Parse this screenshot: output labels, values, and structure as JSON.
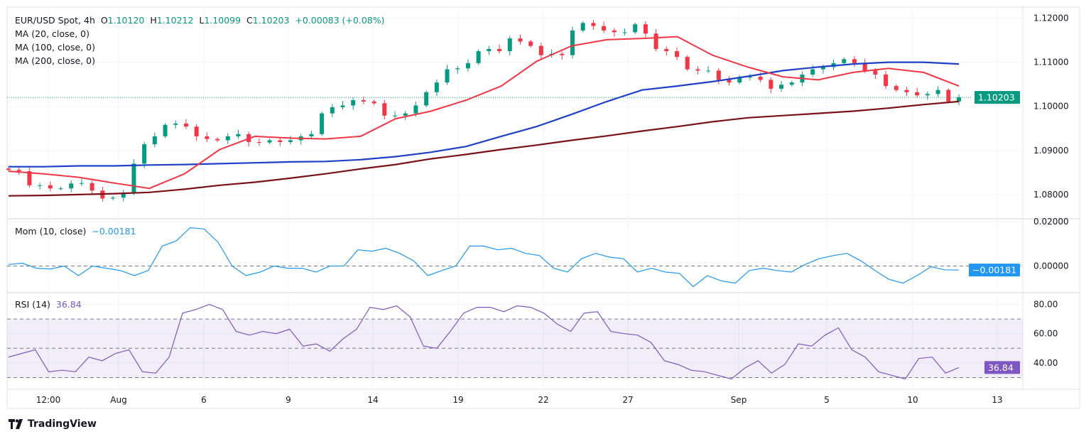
{
  "legend": {
    "symbol": "EUR/USD Spot, 4h",
    "open_label": "O",
    "open": "1.10120",
    "high_label": "H",
    "high": "1.10212",
    "low_label": "L",
    "low": "1.10099",
    "close_label": "C",
    "close": "1.10203",
    "change": "+0.00083 (+0.08%)",
    "ma20": "MA (20, close, 0)",
    "ma100": "MA (100, close, 0)",
    "ma200": "MA (200, close, 0)",
    "mom": "Mom (10, close)",
    "mom_value": "−0.00181",
    "rsi": "RSI (14)",
    "rsi_value": "36.84"
  },
  "branding": {
    "logo_text": "TradingView"
  },
  "colors": {
    "up": "#089981",
    "down": "#f23645",
    "ma20": "#f23645",
    "ma100": "#1e40c8",
    "ma200": "#7b1118",
    "mom": "#2196f3",
    "rsi": "#7e57c2"
  },
  "chart_data": [
    {
      "type": "line",
      "title": "EUR/USD Spot, 4h",
      "ylim": [
        1.0745,
        1.1225
      ],
      "yticks": [
        "1.12000",
        "1.11000",
        "1.10000",
        "1.09000",
        "1.08000"
      ],
      "ytick_values": [
        1.12,
        1.11,
        1.1,
        1.09,
        1.08
      ],
      "last_price_label": "1.10203",
      "last_price": 1.10203,
      "xticks": [
        "12:00",
        "Aug",
        "6",
        "9",
        "14",
        "19",
        "22",
        "27",
        "Sep",
        "5",
        "10",
        "13"
      ],
      "closes": [
        1.0856,
        1.0853,
        1.0821,
        1.0821,
        1.0814,
        1.0814,
        1.0825,
        1.0826,
        1.0809,
        1.0791,
        1.0793,
        1.0804,
        1.087,
        1.0914,
        1.0932,
        1.0958,
        1.0961,
        1.0954,
        1.0932,
        1.0926,
        1.0923,
        1.0932,
        1.0937,
        1.0919,
        1.0918,
        1.0923,
        1.0919,
        1.0923,
        1.0932,
        1.0937,
        1.0984,
        1.0998,
        1.1002,
        1.1014,
        1.1011,
        1.1007,
        1.0979,
        1.0979,
        1.0984,
        1.1002,
        1.1032,
        1.1054,
        1.1084,
        1.1086,
        1.1098,
        1.1125,
        1.113,
        1.1125,
        1.1154,
        1.1147,
        1.1137,
        1.1116,
        1.1119,
        1.1116,
        1.1172,
        1.1189,
        1.1182,
        1.1172,
        1.1168,
        1.1168,
        1.1186,
        1.1165,
        1.113,
        1.1125,
        1.1112,
        1.1084,
        1.1081,
        1.1081,
        1.106,
        1.1054,
        1.1067,
        1.1067,
        1.106,
        1.104,
        1.1049,
        1.1054,
        1.1072,
        1.1084,
        1.1089,
        1.1098,
        1.1107,
        1.1098,
        1.1081,
        1.1072,
        1.1046,
        1.1037,
        1.1032,
        1.1025,
        1.1028,
        1.1037,
        1.1011,
        1.10203
      ],
      "series": [
        {
          "name": "MA (20, close, 0)",
          "values": [
            1.0853,
            1.0847,
            1.0839,
            1.0826,
            1.0814,
            1.0847,
            1.0902,
            1.0932,
            1.0928,
            1.0926,
            1.0932,
            1.0972,
            1.0989,
            1.1014,
            1.1046,
            1.1102,
            1.1137,
            1.1151,
            1.1154,
            1.1158,
            1.1116,
            1.1089,
            1.1067,
            1.106,
            1.1077,
            1.1086,
            1.1077,
            1.1046
          ]
        },
        {
          "name": "MA (100, close, 0)",
          "values": [
            1.0863,
            1.0863,
            1.0865,
            1.0865,
            1.0867,
            1.0868,
            1.087,
            1.0872,
            1.0874,
            1.0875,
            1.0879,
            1.0886,
            1.0896,
            1.0909,
            1.0932,
            1.0954,
            1.0982,
            1.1011,
            1.1037,
            1.1046,
            1.1056,
            1.1068,
            1.1081,
            1.1089,
            1.1096,
            1.11,
            1.11,
            1.1096
          ]
        },
        {
          "name": "MA (200, close, 0)",
          "values": [
            1.0797,
            1.0798,
            1.08,
            1.0802,
            1.0805,
            1.0812,
            1.0821,
            1.0828,
            1.0837,
            1.0847,
            1.0858,
            1.0868,
            1.0881,
            1.0891,
            1.0902,
            1.0912,
            1.0923,
            1.0933,
            1.0944,
            1.0954,
            1.0965,
            1.0974,
            1.0979,
            1.0984,
            1.0989,
            1.0996,
            1.1004,
            1.1011
          ]
        }
      ]
    },
    {
      "type": "line",
      "title": "Mom (10, close)",
      "ylim": [
        -0.012,
        0.0213
      ],
      "yticks": [
        "0.02000",
        "0.00000"
      ],
      "ytick_values": [
        0.02,
        0.0
      ],
      "last_value_label": "−0.00181",
      "values": [
        0.0007,
        0.0013,
        -0.001,
        -0.0013,
        0,
        -0.0043,
        0,
        -0.001,
        -0.002,
        -0.0043,
        -0.002,
        0.009,
        0.0113,
        0.0173,
        0.0167,
        0.0107,
        0,
        -0.0043,
        -0.0027,
        0,
        -0.001,
        -0.001,
        -0.0027,
        0,
        0,
        0.0073,
        0.0067,
        0.008,
        0.0057,
        0.0023,
        -0.0043,
        -0.002,
        0,
        0.009,
        0.009,
        0.0073,
        0.008,
        0.0057,
        0.0047,
        -0.001,
        -0.0027,
        0.0033,
        0.0057,
        0.004,
        0.0033,
        -0.0027,
        -0.001,
        -0.0027,
        -0.0033,
        -0.0093,
        -0.0043,
        -0.0067,
        -0.0077,
        -0.002,
        -0.001,
        -0.002,
        -0.0027,
        0.0007,
        0.0033,
        0.0047,
        0.0057,
        0.0023,
        -0.002,
        -0.006,
        -0.0077,
        -0.0043,
        -0.0003,
        -0.0017,
        -0.00181
      ]
    },
    {
      "type": "line",
      "title": "RSI (14)",
      "ylim": [
        22,
        88
      ],
      "yticks": [
        "80.00",
        "60.00",
        "40.00"
      ],
      "ytick_values": [
        80,
        60,
        40
      ],
      "bands": [
        30,
        50,
        70
      ],
      "last_value_label": "36.84",
      "values": [
        44,
        46.5,
        49,
        34,
        35,
        34,
        44,
        41.5,
        46.5,
        49,
        34,
        33,
        44,
        74,
        76.5,
        80,
        76.5,
        61.5,
        59,
        61.5,
        60,
        63,
        51.5,
        53,
        48,
        56.5,
        63,
        78,
        76.5,
        79,
        71.5,
        51.5,
        50,
        61.5,
        74,
        78,
        78,
        75,
        79,
        78,
        74,
        66.5,
        61.5,
        74,
        75,
        61.5,
        60,
        59,
        54,
        41.5,
        39,
        35,
        34,
        31.5,
        29,
        36.5,
        41.5,
        33,
        39,
        53,
        51.5,
        59,
        64,
        49,
        44,
        34,
        31.5,
        29,
        43,
        44,
        33,
        36.84
      ]
    }
  ]
}
